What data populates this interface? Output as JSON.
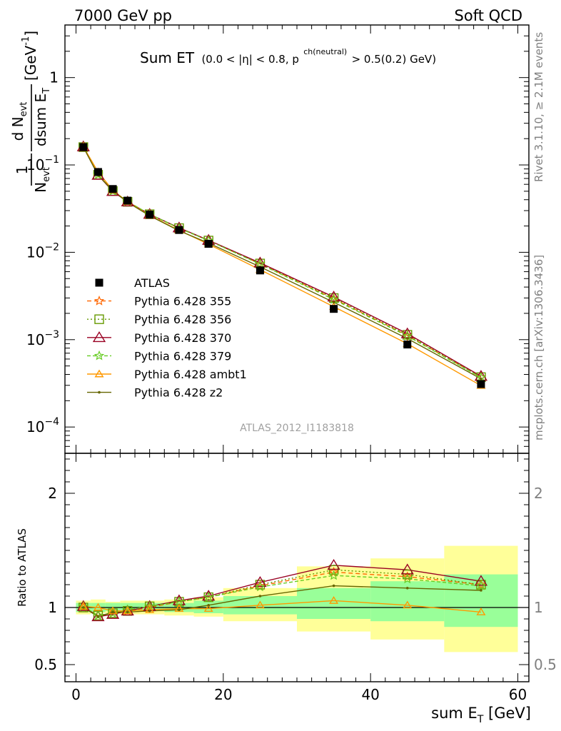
{
  "header": {
    "left": "7000 GeV pp",
    "right": "Soft QCD"
  },
  "side_text": {
    "rivet": "Rivet 3.1.10, ≥ 2.1M events",
    "mcplots": "mcplots.cern.ch [arXiv:1306.3436]"
  },
  "plot_title": {
    "main": "Sum ET",
    "cond_start": "(0.0 < |η| < 0.8, p",
    "cond_sup": "ch(neutral)",
    "cond_end": " > 0.5(0.2) GeV)"
  },
  "y_axis": {
    "frac_num": "1",
    "frac_den": "N",
    "den_sub": "evt",
    "d_num": "d N",
    "d_num_sub": "evt",
    "d_den": "dsum E",
    "d_den_sub": "T",
    "unit": "[GeV",
    "unit_sup": "-1",
    "unit_close": "]"
  },
  "x_axis": {
    "label": "sum E",
    "label_sub": "T",
    "unit": " [GeV]"
  },
  "ratio_axis_label": "Ratio to ATLAS",
  "analysis_id": "ATLAS_2012_I1183818",
  "colors": {
    "data": "#000000",
    "p355": "#ff6600",
    "p356": "#669900",
    "p370": "#990022",
    "p379": "#66cc22",
    "ambt1": "#ff9900",
    "z2": "#666600",
    "band_stat": "#99ff99",
    "band_syst": "#ffff99"
  },
  "chart_data": {
    "type": "line",
    "x_range": [
      -1.5,
      61.5
    ],
    "xticks": [
      0,
      20,
      40,
      60
    ],
    "xtick_labels": [
      "0",
      "20",
      "40",
      "60"
    ],
    "main_log_y_range": [
      5e-05,
      4
    ],
    "main_yticks": [
      1,
      0.1,
      0.01,
      0.001,
      0.0001
    ],
    "main_ytick_labels": [
      {
        "base": "1",
        "exp": ""
      },
      {
        "base": "10",
        "exp": "−1"
      },
      {
        "base": "10",
        "exp": "−2"
      },
      {
        "base": "10",
        "exp": "−3"
      },
      {
        "base": "10",
        "exp": "−4"
      }
    ],
    "ratio_y_range": [
      0.35,
      2.35
    ],
    "ratio_yticks": [
      0.5,
      1,
      2
    ],
    "ratio_ytick_labels": [
      "0.5",
      "1",
      "2"
    ],
    "bins": [
      [
        0,
        2
      ],
      [
        2,
        4
      ],
      [
        4,
        6
      ],
      [
        6,
        8
      ],
      [
        8,
        12
      ],
      [
        12,
        16
      ],
      [
        16,
        20
      ],
      [
        20,
        30
      ],
      [
        30,
        40
      ],
      [
        40,
        50
      ],
      [
        50,
        60
      ]
    ],
    "x": [
      1,
      3,
      5,
      7,
      10,
      14,
      18,
      25,
      35,
      45,
      55
    ],
    "data": {
      "name": "ATLAS",
      "values": [
        0.16,
        0.083,
        0.053,
        0.039,
        0.027,
        0.018,
        0.0125,
        0.0062,
        0.00225,
        0.00088,
        0.00031
      ]
    },
    "ratio_bands": {
      "stat_lo": [
        0.96,
        0.96,
        0.97,
        0.97,
        0.97,
        0.96,
        0.95,
        0.94,
        0.9,
        0.88,
        0.83
      ],
      "stat_hi": [
        1.04,
        1.04,
        1.04,
        1.04,
        1.04,
        1.04,
        1.06,
        1.1,
        1.17,
        1.23,
        1.29
      ],
      "syst_lo": [
        0.94,
        0.95,
        0.95,
        0.94,
        0.94,
        0.93,
        0.92,
        0.88,
        0.79,
        0.72,
        0.61
      ],
      "syst_hi": [
        1.06,
        1.07,
        1.05,
        1.06,
        1.06,
        1.07,
        1.09,
        1.17,
        1.36,
        1.43,
        1.54
      ]
    },
    "series": [
      {
        "name": "Pythia 6.428 355",
        "key": "p355",
        "marker": "star",
        "dash": "6,4",
        "ratio": [
          1.0,
          0.93,
          0.95,
          0.97,
          1.0,
          1.05,
          1.09,
          1.19,
          1.31,
          1.27,
          1.2
        ]
      },
      {
        "name": "Pythia 6.428 356",
        "key": "p356",
        "marker": "square",
        "dash": "2,3",
        "ratio": [
          1.0,
          0.93,
          0.95,
          0.97,
          1.01,
          1.05,
          1.09,
          1.2,
          1.33,
          1.29,
          1.2
        ]
      },
      {
        "name": "Pythia 6.428 370",
        "key": "p370",
        "marker": "triangle",
        "dash": "",
        "ratio": [
          1.01,
          0.92,
          0.94,
          0.97,
          1.01,
          1.06,
          1.1,
          1.22,
          1.37,
          1.33,
          1.23
        ]
      },
      {
        "name": "Pythia 6.428 379",
        "key": "p379",
        "marker": "star",
        "dash": "5,3",
        "ratio": [
          1.01,
          0.93,
          0.95,
          0.98,
          1.01,
          1.05,
          1.09,
          1.18,
          1.28,
          1.25,
          1.19
        ]
      },
      {
        "name": "Pythia 6.428 ambt1",
        "key": "ambt1",
        "marker": "triangle-small",
        "dash": "",
        "ratio": [
          1.01,
          1.0,
          0.97,
          0.97,
          0.98,
          0.99,
          0.99,
          1.02,
          1.06,
          1.02,
          0.96
        ]
      },
      {
        "name": "Pythia 6.428 z2",
        "key": "z2",
        "marker": "dot",
        "dash": "",
        "ratio": [
          1.0,
          0.92,
          0.96,
          0.96,
          0.97,
          0.98,
          1.02,
          1.1,
          1.19,
          1.17,
          1.15
        ]
      }
    ]
  }
}
